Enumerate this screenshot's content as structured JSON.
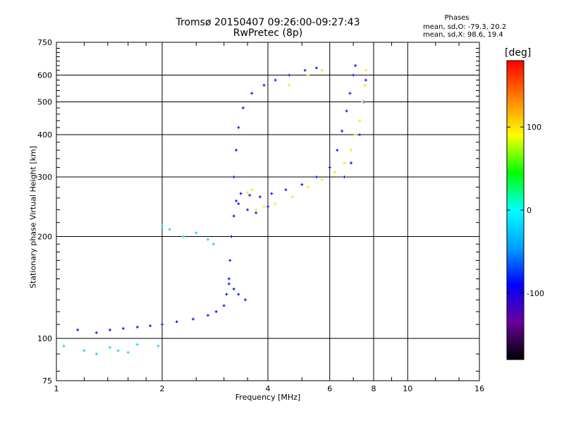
{
  "title": {
    "line1": "Tromsø 20150407 09:26:00-09:27:43",
    "line2": "RwPretec (8p)"
  },
  "phases": {
    "header": "Phases",
    "o_line": "mean, sd,O: -79.3, 20.2",
    "x_line": "mean, sd,X:  98.6, 19.4"
  },
  "colorbar": {
    "title": "[deg]",
    "ticks": [
      {
        "value": 100,
        "label": "100"
      },
      {
        "value": 0,
        "label": "0"
      },
      {
        "value": -100,
        "label": "-100"
      }
    ],
    "range": [
      -180,
      180
    ],
    "colormap": [
      "#000000",
      "#6a009a",
      "#0000ff",
      "#00a0ff",
      "#00ffff",
      "#00ff00",
      "#ffff00",
      "#ff8000",
      "#ff0000"
    ]
  },
  "chart_data": {
    "type": "scatter",
    "title": "Tromsø 20150407 09:26:00-09:27:43",
    "subtitle": "RwPretec (8p)",
    "xlabel": "Frequency [MHz]",
    "ylabel": "Stationary phase Virtual Height [km]",
    "xscale": "log",
    "yscale": "log",
    "xlim": [
      1,
      16
    ],
    "ylim": [
      75,
      750
    ],
    "xticks": [
      {
        "value": 1,
        "label": "1"
      },
      {
        "value": 2,
        "label": "2"
      },
      {
        "value": 4,
        "label": "4"
      },
      {
        "value": 6,
        "label": "6"
      },
      {
        "value": 8,
        "label": "8"
      },
      {
        "value": 10,
        "label": "10"
      },
      {
        "value": 16,
        "label": "16"
      }
    ],
    "yticks": [
      {
        "value": 75,
        "label": "75"
      },
      {
        "value": 100,
        "label": "100"
      },
      {
        "value": 200,
        "label": "200"
      },
      {
        "value": 300,
        "label": "300"
      },
      {
        "value": 400,
        "label": "400"
      },
      {
        "value": 500,
        "label": "500"
      },
      {
        "value": 600,
        "label": "600"
      },
      {
        "value": 750,
        "label": "750"
      }
    ],
    "grid": true,
    "colorbar_label": "[deg]",
    "series": [
      {
        "mode": "O",
        "color_value": -85,
        "points": [
          [
            1.15,
            106
          ],
          [
            1.3,
            104
          ],
          [
            1.42,
            106
          ],
          [
            1.55,
            107
          ],
          [
            1.7,
            108
          ],
          [
            1.85,
            109
          ],
          [
            2.0,
            110
          ],
          [
            2.2,
            112
          ],
          [
            2.45,
            114
          ],
          [
            2.7,
            117
          ],
          [
            2.85,
            120
          ],
          [
            3.0,
            125
          ],
          [
            3.05,
            135
          ],
          [
            3.1,
            150
          ],
          [
            3.12,
            170
          ],
          [
            3.15,
            200
          ],
          [
            3.2,
            230
          ],
          [
            3.25,
            255
          ],
          [
            3.35,
            268
          ],
          [
            3.55,
            265
          ],
          [
            3.8,
            262
          ],
          [
            4.1,
            268
          ],
          [
            4.5,
            275
          ],
          [
            5.0,
            285
          ],
          [
            5.5,
            300
          ],
          [
            6.0,
            320
          ],
          [
            6.3,
            360
          ],
          [
            6.5,
            410
          ],
          [
            6.7,
            470
          ],
          [
            6.85,
            530
          ],
          [
            7.0,
            600
          ],
          [
            7.1,
            640
          ],
          [
            3.2,
            300
          ],
          [
            3.25,
            360
          ],
          [
            3.3,
            420
          ],
          [
            3.4,
            480
          ],
          [
            3.6,
            530
          ],
          [
            3.9,
            560
          ],
          [
            4.2,
            580
          ],
          [
            4.6,
            600
          ],
          [
            5.1,
            620
          ],
          [
            5.5,
            630
          ],
          [
            3.3,
            250
          ],
          [
            3.5,
            240
          ],
          [
            3.7,
            235
          ],
          [
            4.0,
            245
          ],
          [
            3.1,
            145
          ],
          [
            3.2,
            140
          ],
          [
            3.3,
            135
          ],
          [
            3.45,
            130
          ],
          [
            6.6,
            300
          ],
          [
            6.9,
            330
          ],
          [
            7.3,
            400
          ],
          [
            7.5,
            500
          ],
          [
            7.6,
            580
          ]
        ]
      },
      {
        "mode": "X",
        "color_value": 100,
        "points": [
          [
            3.9,
            245
          ],
          [
            4.2,
            250
          ],
          [
            4.7,
            262
          ],
          [
            5.2,
            280
          ],
          [
            5.7,
            295
          ],
          [
            6.2,
            310
          ],
          [
            6.6,
            330
          ],
          [
            6.9,
            360
          ],
          [
            7.1,
            400
          ],
          [
            7.3,
            440
          ],
          [
            7.45,
            500
          ],
          [
            7.55,
            560
          ],
          [
            7.6,
            620
          ],
          [
            3.7,
            240
          ],
          [
            3.5,
            270
          ],
          [
            3.6,
            275
          ],
          [
            4.6,
            560
          ],
          [
            5.2,
            600
          ],
          [
            5.7,
            620
          ]
        ]
      },
      {
        "mode": "scattered",
        "color_value": -20,
        "points": [
          [
            1.05,
            95
          ],
          [
            1.2,
            92
          ],
          [
            1.3,
            90
          ],
          [
            1.42,
            94
          ],
          [
            1.5,
            92
          ],
          [
            1.6,
            91
          ],
          [
            1.7,
            96
          ],
          [
            1.95,
            95
          ],
          [
            2.0,
            215
          ],
          [
            2.1,
            210
          ],
          [
            2.3,
            200
          ],
          [
            2.5,
            205
          ],
          [
            2.7,
            196
          ],
          [
            2.8,
            190
          ]
        ]
      }
    ]
  }
}
